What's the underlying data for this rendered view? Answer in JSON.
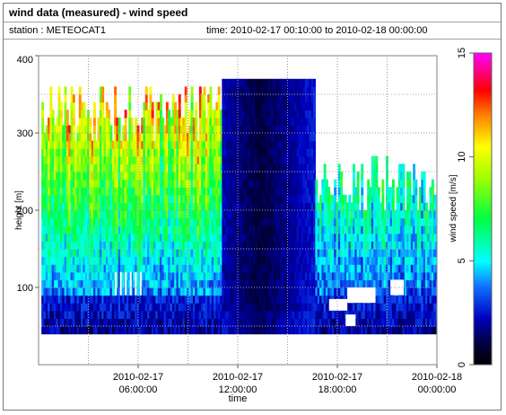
{
  "header": {
    "title": "wind data (measured) - wind speed",
    "station": "station : METEOCAT1",
    "time_range": "time: 2010-02-17 00:10:00 to 2010-02-18 00:00:00"
  },
  "chart_data": {
    "type": "heatmap",
    "xlabel": "time",
    "ylabel": "height [m]",
    "colorbar_label": "wind speed [m/s]",
    "ylim": [
      0,
      400
    ],
    "y_ticks": [
      100,
      200,
      300,
      400
    ],
    "x_ticks": [
      {
        "hour": 6,
        "line1": "2010-02-17",
        "line2": "06:00:00"
      },
      {
        "hour": 12,
        "line1": "2010-02-17",
        "line2": "12:00:00"
      },
      {
        "hour": 18,
        "line1": "2010-02-17",
        "line2": "18:00:00"
      },
      {
        "hour": 24,
        "line1": "2010-02-18",
        "line2": "00:00:00"
      }
    ],
    "xlim_hours": [
      0,
      24
    ],
    "colorbar_range": [
      0,
      15
    ],
    "colorbar_ticks": [
      0,
      5,
      10,
      15
    ],
    "grid": true,
    "segments": [
      {
        "from_hour": 0.17,
        "to_hour": 11.0,
        "regime": "variable winds, tops 280-360 m, speeds 3-14 m/s"
      },
      {
        "from_hour": 11.0,
        "to_hour": 16.6,
        "regime": "calm, 0-3 m/s up to 365 m"
      },
      {
        "from_hour": 16.6,
        "to_hour": 24.0,
        "regime": "moderate, tops 190-270 m, speeds 2-8 m/s"
      }
    ]
  }
}
